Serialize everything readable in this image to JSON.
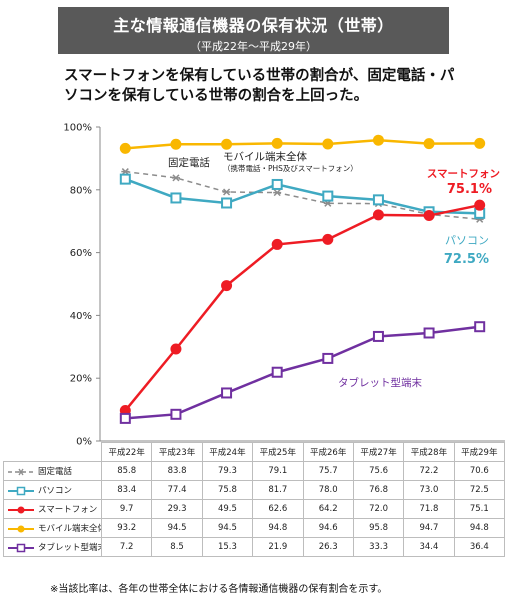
{
  "header": {
    "title": "主な情報通信機器の保有状況（世帯）",
    "subtitle": "（平成22年～平成29年）"
  },
  "headline": "スマートフォンを保有している世帯の割合が、固定電話・パソコンを保有している世帯の割合を上回った。",
  "chart_data": {
    "type": "line",
    "categories": [
      "平成22年",
      "平成23年",
      "平成24年",
      "平成25年",
      "平成26年",
      "平成27年",
      "平成28年",
      "平成29年"
    ],
    "ylim": [
      0,
      100
    ],
    "yticks": [
      "0%",
      "20%",
      "40%",
      "60%",
      "80%",
      "100%"
    ],
    "grid": false,
    "series": [
      {
        "name": "固定電話",
        "color": "#8c8c8c",
        "style": "dashed",
        "marker": "asterisk",
        "values": [
          85.8,
          83.8,
          79.3,
          79.1,
          75.7,
          75.6,
          72.2,
          70.6
        ]
      },
      {
        "name": "パソコン",
        "color": "#3fa9c2",
        "style": "solid",
        "marker": "square",
        "values": [
          83.4,
          77.4,
          75.8,
          81.7,
          78.0,
          76.8,
          73.0,
          72.5
        ]
      },
      {
        "name": "スマートフォン",
        "color": "#ee1c24",
        "style": "solid",
        "marker": "circle",
        "values": [
          9.7,
          29.3,
          49.5,
          62.6,
          64.2,
          72.0,
          71.8,
          75.1
        ]
      },
      {
        "name": "モバイル端末全体",
        "color": "#f9b700",
        "style": "solid",
        "marker": "circle",
        "values": [
          93.2,
          94.5,
          94.5,
          94.8,
          94.6,
          95.8,
          94.7,
          94.8
        ]
      },
      {
        "name": "タブレット型端末",
        "color": "#7030a0",
        "style": "solid",
        "marker": "square",
        "values": [
          7.2,
          8.5,
          15.3,
          21.9,
          26.3,
          33.3,
          34.4,
          36.4
        ]
      }
    ],
    "annotations": {
      "fixed_phone": "固定電話",
      "mobile_total": "モバイル端末全体",
      "mobile_total_note": "（携帯電話・PHS及びスマートフォン）",
      "smartphone": "スマートフォン",
      "smartphone_value": "75.1%",
      "pc": "パソコン",
      "pc_value": "72.5%",
      "tablet": "タブレット型端末"
    }
  },
  "table": {
    "rows": [
      {
        "label": "固定電話",
        "values": [
          "85.8",
          "83.8",
          "79.3",
          "79.1",
          "75.7",
          "75.6",
          "72.2",
          "70.6"
        ]
      },
      {
        "label": "パソコン",
        "values": [
          "83.4",
          "77.4",
          "75.8",
          "81.7",
          "78.0",
          "76.8",
          "73.0",
          "72.5"
        ]
      },
      {
        "label": "スマートフォン",
        "values": [
          "9.7",
          "29.3",
          "49.5",
          "62.6",
          "64.2",
          "72.0",
          "71.8",
          "75.1"
        ]
      },
      {
        "label": "モバイル端末全体",
        "values": [
          "93.2",
          "94.5",
          "94.5",
          "94.8",
          "94.6",
          "95.8",
          "94.7",
          "94.8"
        ]
      },
      {
        "label": "タブレット型端末",
        "values": [
          "7.2",
          "8.5",
          "15.3",
          "21.9",
          "26.3",
          "33.3",
          "34.4",
          "36.4"
        ]
      }
    ]
  },
  "footnote": "※当該比率は、各年の世帯全体における各情報通信機器の保有割合を示す。"
}
